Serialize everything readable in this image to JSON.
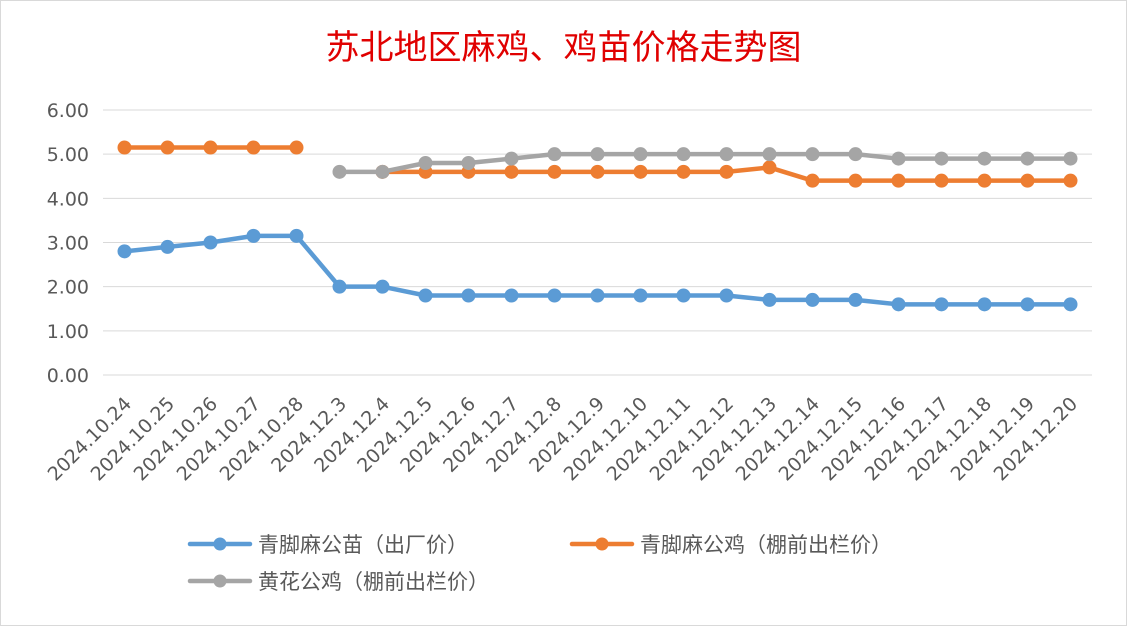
{
  "chart_data": {
    "type": "line",
    "title": "苏北地区麻鸡、鸡苗价格走势图",
    "xlabel": "",
    "ylabel": "",
    "ylim": [
      0,
      6
    ],
    "yticks": [
      "0.00",
      "1.00",
      "2.00",
      "3.00",
      "4.00",
      "5.00",
      "6.00"
    ],
    "grid": true,
    "legend_position": "bottom",
    "categories": [
      "2024.10.24",
      "2024.10.25",
      "2024.10.26",
      "2024.10.27",
      "2024.10.28",
      "2024.12.3",
      "2024.12.4",
      "2024.12.5",
      "2024.12.6",
      "2024.12.7",
      "2024.12.8",
      "2024.12.9",
      "2024.12.10",
      "2024.12.11",
      "2024.12.12",
      "2024.12.13",
      "2024.12.14",
      "2024.12.15",
      "2024.12.16",
      "2024.12.17",
      "2024.12.18",
      "2024.12.19",
      "2024.12.20"
    ],
    "series": [
      {
        "name": "青脚麻公苗（出厂价）",
        "color": "#5b9bd5",
        "values": [
          2.8,
          2.9,
          3.0,
          3.15,
          3.15,
          2.0,
          2.0,
          1.8,
          1.8,
          1.8,
          1.8,
          1.8,
          1.8,
          1.8,
          1.8,
          1.7,
          1.7,
          1.7,
          1.6,
          1.6,
          1.6,
          1.6,
          1.6
        ]
      },
      {
        "name": "青脚麻公鸡（棚前出栏价）",
        "color": "#ed7d31",
        "values": [
          5.15,
          5.15,
          5.15,
          5.15,
          5.15,
          null,
          4.6,
          4.6,
          4.6,
          4.6,
          4.6,
          4.6,
          4.6,
          4.6,
          4.6,
          4.7,
          4.4,
          4.4,
          4.4,
          4.4,
          4.4,
          4.4,
          4.4
        ]
      },
      {
        "name": "黄花公鸡（棚前出栏价）",
        "color": "#a5a5a5",
        "values": [
          null,
          null,
          null,
          null,
          null,
          4.6,
          4.6,
          4.8,
          4.8,
          4.9,
          5.0,
          5.0,
          5.0,
          5.0,
          5.0,
          5.0,
          5.0,
          5.0,
          4.9,
          4.9,
          4.9,
          4.9,
          4.9
        ]
      }
    ]
  }
}
